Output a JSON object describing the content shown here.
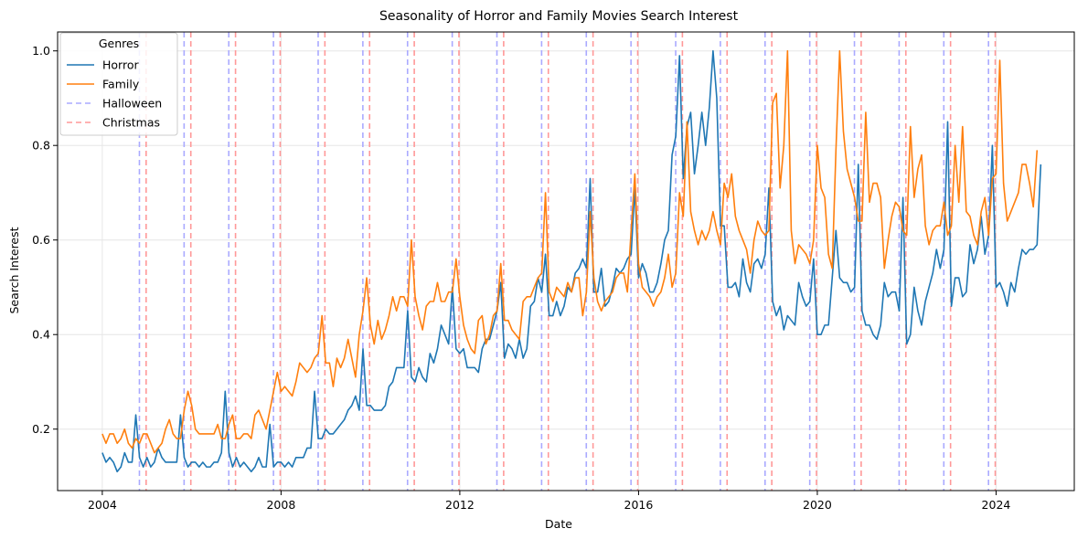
{
  "chart_data": {
    "type": "line",
    "title": "Seasonality of Horror and Family Movies Search Interest",
    "xlabel": "Date",
    "ylabel": "Search Interest",
    "xlim": [
      "2003-01-01",
      "2025-10-01"
    ],
    "ylim": [
      0.07,
      1.04
    ],
    "x_ticks": [
      "2004",
      "2008",
      "2012",
      "2016",
      "2020",
      "2024"
    ],
    "y_ticks": [
      "0.2",
      "0.4",
      "0.6",
      "0.8",
      "1.0"
    ],
    "grid": true,
    "legend": {
      "title": "Genres",
      "placement": "top-left"
    },
    "start_month": "2004-01",
    "series": [
      {
        "name": "Horror",
        "color": "#1f77b4",
        "style": "solid",
        "values": [
          0.15,
          0.13,
          0.14,
          0.13,
          0.11,
          0.12,
          0.15,
          0.13,
          0.13,
          0.23,
          0.14,
          0.12,
          0.14,
          0.12,
          0.13,
          0.16,
          0.14,
          0.13,
          0.13,
          0.13,
          0.13,
          0.23,
          0.14,
          0.12,
          0.13,
          0.13,
          0.12,
          0.13,
          0.12,
          0.12,
          0.13,
          0.13,
          0.15,
          0.28,
          0.15,
          0.12,
          0.14,
          0.12,
          0.13,
          0.12,
          0.11,
          0.12,
          0.14,
          0.12,
          0.12,
          0.21,
          0.12,
          0.13,
          0.13,
          0.12,
          0.13,
          0.12,
          0.14,
          0.14,
          0.14,
          0.16,
          0.16,
          0.28,
          0.18,
          0.18,
          0.2,
          0.19,
          0.19,
          0.2,
          0.21,
          0.22,
          0.24,
          0.25,
          0.27,
          0.24,
          0.37,
          0.25,
          0.25,
          0.24,
          0.24,
          0.24,
          0.25,
          0.29,
          0.3,
          0.33,
          0.33,
          0.33,
          0.45,
          0.31,
          0.3,
          0.33,
          0.31,
          0.3,
          0.36,
          0.34,
          0.37,
          0.42,
          0.4,
          0.38,
          0.5,
          0.37,
          0.36,
          0.37,
          0.33,
          0.33,
          0.33,
          0.32,
          0.37,
          0.39,
          0.39,
          0.42,
          0.45,
          0.51,
          0.35,
          0.38,
          0.37,
          0.35,
          0.39,
          0.35,
          0.37,
          0.46,
          0.47,
          0.52,
          0.49,
          0.57,
          0.44,
          0.44,
          0.47,
          0.44,
          0.46,
          0.5,
          0.49,
          0.53,
          0.54,
          0.56,
          0.54,
          0.73,
          0.49,
          0.49,
          0.54,
          0.46,
          0.47,
          0.5,
          0.54,
          0.53,
          0.54,
          0.56,
          0.57,
          0.71,
          0.52,
          0.55,
          0.53,
          0.49,
          0.49,
          0.51,
          0.55,
          0.6,
          0.62,
          0.78,
          0.82,
          0.99,
          0.73,
          0.84,
          0.87,
          0.74,
          0.8,
          0.87,
          0.8,
          0.88,
          1.0,
          0.9,
          0.63,
          0.63,
          0.5,
          0.5,
          0.51,
          0.48,
          0.56,
          0.51,
          0.49,
          0.55,
          0.56,
          0.54,
          0.57,
          0.71,
          0.47,
          0.44,
          0.46,
          0.41,
          0.44,
          0.43,
          0.42,
          0.51,
          0.48,
          0.46,
          0.47,
          0.56,
          0.4,
          0.4,
          0.42,
          0.42,
          0.52,
          0.62,
          0.52,
          0.51,
          0.51,
          0.49,
          0.5,
          0.76,
          0.45,
          0.42,
          0.42,
          0.4,
          0.39,
          0.42,
          0.51,
          0.48,
          0.49,
          0.49,
          0.45,
          0.69,
          0.38,
          0.4,
          0.5,
          0.45,
          0.42,
          0.47,
          0.5,
          0.53,
          0.58,
          0.54,
          0.58,
          0.85,
          0.46,
          0.52,
          0.52,
          0.48,
          0.49,
          0.59,
          0.55,
          0.58,
          0.65,
          0.57,
          0.61,
          0.8,
          0.5,
          0.51,
          0.49,
          0.46,
          0.51,
          0.49,
          0.54,
          0.58,
          0.57,
          0.58,
          0.58,
          0.59,
          0.76
        ]
      },
      {
        "name": "Family",
        "color": "#ff7f0e",
        "style": "solid",
        "values": [
          0.19,
          0.17,
          0.19,
          0.19,
          0.17,
          0.18,
          0.2,
          0.17,
          0.16,
          0.18,
          0.17,
          0.19,
          0.19,
          0.17,
          0.15,
          0.16,
          0.17,
          0.2,
          0.22,
          0.19,
          0.18,
          0.18,
          0.24,
          0.28,
          0.25,
          0.2,
          0.19,
          0.19,
          0.19,
          0.19,
          0.19,
          0.21,
          0.18,
          0.18,
          0.21,
          0.23,
          0.18,
          0.18,
          0.19,
          0.19,
          0.18,
          0.23,
          0.24,
          0.22,
          0.2,
          0.24,
          0.28,
          0.32,
          0.28,
          0.29,
          0.28,
          0.27,
          0.3,
          0.34,
          0.33,
          0.32,
          0.33,
          0.35,
          0.36,
          0.44,
          0.34,
          0.34,
          0.29,
          0.35,
          0.33,
          0.35,
          0.39,
          0.35,
          0.31,
          0.4,
          0.45,
          0.52,
          0.42,
          0.38,
          0.43,
          0.39,
          0.41,
          0.44,
          0.48,
          0.45,
          0.48,
          0.48,
          0.46,
          0.6,
          0.48,
          0.44,
          0.41,
          0.46,
          0.47,
          0.47,
          0.51,
          0.47,
          0.47,
          0.49,
          0.49,
          0.56,
          0.48,
          0.42,
          0.39,
          0.37,
          0.36,
          0.43,
          0.44,
          0.38,
          0.4,
          0.44,
          0.45,
          0.55,
          0.43,
          0.43,
          0.41,
          0.4,
          0.39,
          0.47,
          0.48,
          0.48,
          0.5,
          0.52,
          0.53,
          0.7,
          0.49,
          0.47,
          0.5,
          0.49,
          0.48,
          0.51,
          0.49,
          0.52,
          0.52,
          0.44,
          0.49,
          0.66,
          0.52,
          0.47,
          0.45,
          0.47,
          0.48,
          0.49,
          0.52,
          0.53,
          0.53,
          0.49,
          0.62,
          0.74,
          0.55,
          0.5,
          0.49,
          0.48,
          0.46,
          0.48,
          0.49,
          0.52,
          0.57,
          0.5,
          0.53,
          0.7,
          0.65,
          0.85,
          0.66,
          0.62,
          0.59,
          0.62,
          0.6,
          0.62,
          0.66,
          0.62,
          0.59,
          0.72,
          0.69,
          0.74,
          0.65,
          0.62,
          0.6,
          0.58,
          0.53,
          0.6,
          0.64,
          0.62,
          0.61,
          0.62,
          0.89,
          0.91,
          0.71,
          0.8,
          1.0,
          0.62,
          0.55,
          0.59,
          0.58,
          0.57,
          0.55,
          0.6,
          0.8,
          0.71,
          0.69,
          0.57,
          0.54,
          0.79,
          1.0,
          0.83,
          0.75,
          0.72,
          0.69,
          0.64,
          0.64,
          0.87,
          0.68,
          0.72,
          0.72,
          0.69,
          0.54,
          0.6,
          0.65,
          0.68,
          0.67,
          0.62,
          0.61,
          0.84,
          0.69,
          0.75,
          0.78,
          0.63,
          0.59,
          0.62,
          0.63,
          0.63,
          0.68,
          0.61,
          0.63,
          0.8,
          0.68,
          0.84,
          0.66,
          0.65,
          0.61,
          0.59,
          0.66,
          0.69,
          0.61,
          0.73,
          0.74,
          0.98,
          0.72,
          0.64,
          0.66,
          0.68,
          0.7,
          0.76,
          0.76,
          0.72,
          0.67,
          0.79
        ]
      }
    ],
    "reference_lines": [
      {
        "name": "Halloween",
        "color": "#aaaaff",
        "style": "dashed",
        "dates": [
          "2004-10-31",
          "2005-10-31",
          "2006-10-31",
          "2007-10-31",
          "2008-10-31",
          "2009-10-31",
          "2010-10-31",
          "2011-10-31",
          "2012-10-31",
          "2013-10-31",
          "2014-10-31",
          "2015-10-31",
          "2016-10-31",
          "2017-10-31",
          "2018-10-31",
          "2019-10-31",
          "2020-10-31",
          "2021-10-31",
          "2022-10-31",
          "2023-10-31"
        ]
      },
      {
        "name": "Christmas",
        "color": "#ff9999",
        "style": "dashed",
        "dates": [
          "2004-12-25",
          "2005-12-25",
          "2006-12-25",
          "2007-12-25",
          "2008-12-25",
          "2009-12-25",
          "2010-12-25",
          "2011-12-25",
          "2012-12-25",
          "2013-12-25",
          "2014-12-25",
          "2015-12-25",
          "2016-12-25",
          "2017-12-25",
          "2018-12-25",
          "2019-12-25",
          "2020-12-25",
          "2021-12-25",
          "2022-12-25",
          "2023-12-25"
        ]
      }
    ]
  }
}
